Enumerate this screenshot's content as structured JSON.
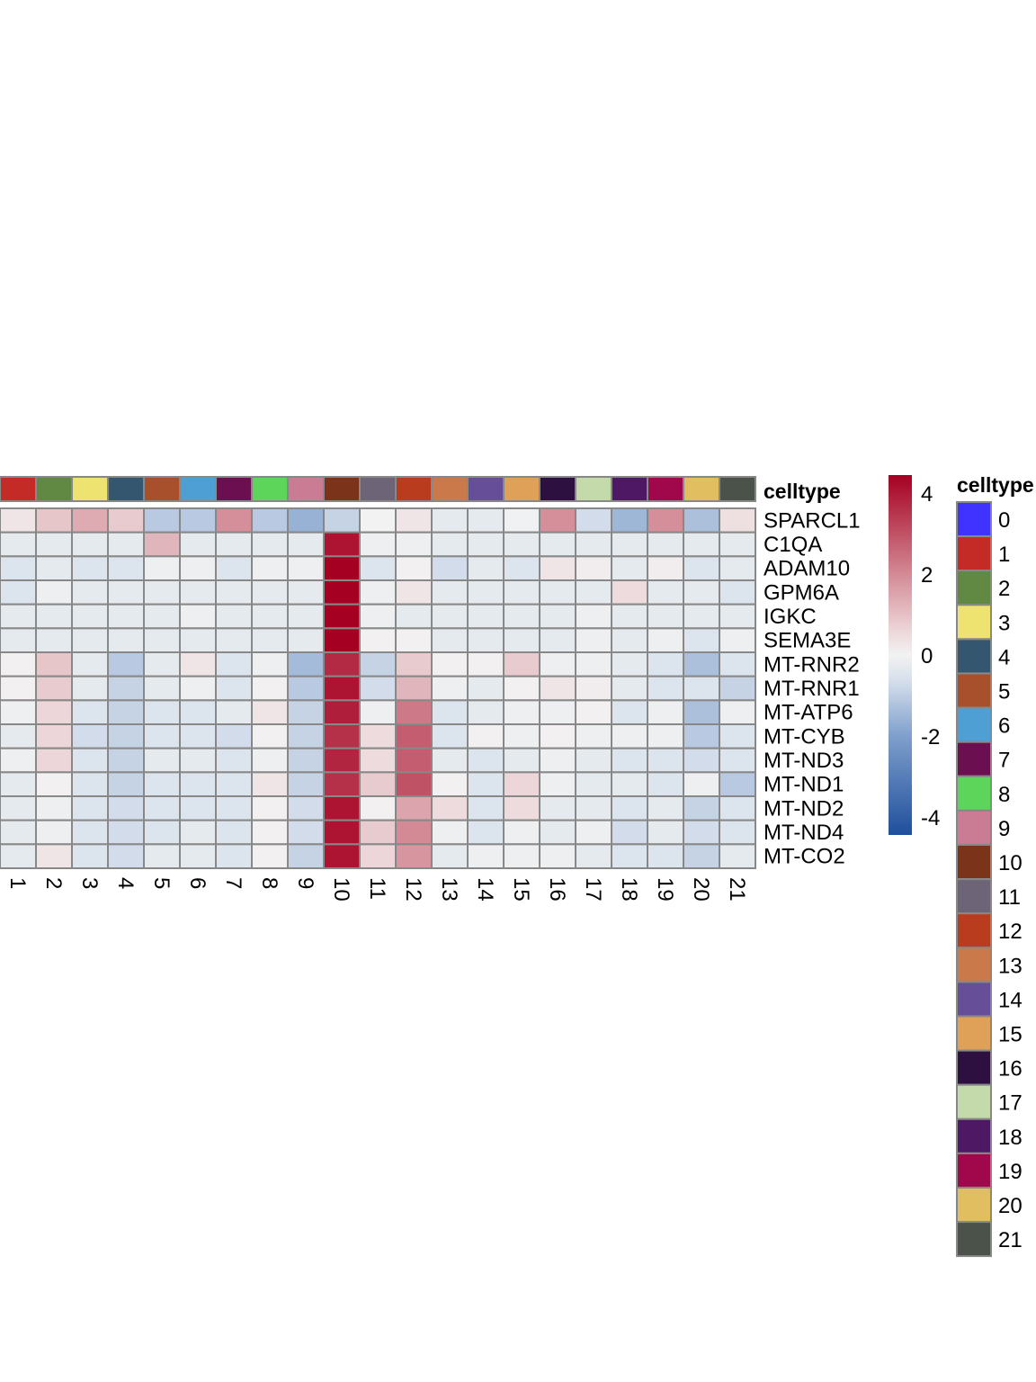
{
  "chart_data": {
    "type": "heatmap",
    "title": "",
    "annotation_label": "celltype",
    "columns": [
      "1",
      "2",
      "3",
      "4",
      "5",
      "6",
      "7",
      "8",
      "9",
      "10",
      "11",
      "12",
      "13",
      "14",
      "15",
      "16",
      "17",
      "18",
      "19",
      "20",
      "21"
    ],
    "rows": [
      "SPARCL1",
      "C1QA",
      "ADAM10",
      "GPM6A",
      "IGKC",
      "SEMA3E",
      "MT-RNR2",
      "MT-RNR1",
      "MT-ATP6",
      "MT-CYB",
      "MT-ND3",
      "MT-ND1",
      "MT-ND2",
      "MT-ND4",
      "MT-CO2"
    ],
    "values": [
      [
        0.3,
        0.9,
        1.4,
        0.8,
        -1.1,
        -1.1,
        1.9,
        -1.1,
        -1.6,
        -0.9,
        0,
        0.3,
        -0.3,
        -0.3,
        -0.05,
        1.9,
        -0.7,
        -1.5,
        1.9,
        -1.3,
        0.4
      ],
      [
        -0.3,
        -0.3,
        -0.3,
        -0.3,
        1.2,
        -0.3,
        -0.3,
        -0.3,
        -0.3,
        4.1,
        -0.1,
        -0.1,
        -0.3,
        -0.3,
        -0.3,
        -0.3,
        -0.3,
        -0.3,
        -0.3,
        -0.3,
        -0.3
      ],
      [
        -0.5,
        -0.3,
        -0.5,
        -0.5,
        -0.1,
        -0.1,
        -0.5,
        -0.1,
        -0.1,
        4.45,
        -0.5,
        0.05,
        -0.7,
        -0.3,
        -0.5,
        0.3,
        0.1,
        -0.3,
        0.1,
        -0.5,
        -0.3
      ],
      [
        -0.5,
        -0.1,
        -0.3,
        -0.3,
        -0.3,
        -0.3,
        -0.3,
        -0.3,
        -0.3,
        4.45,
        -0.1,
        0.3,
        -0.3,
        -0.3,
        -0.3,
        -0.3,
        -0.3,
        0.5,
        -0.3,
        -0.3,
        -0.5
      ],
      [
        -0.3,
        -0.3,
        -0.3,
        -0.3,
        -0.3,
        -0.1,
        -0.3,
        -0.3,
        -0.3,
        4.45,
        -0.1,
        -0.3,
        -0.3,
        -0.3,
        -0.3,
        -0.3,
        -0.1,
        -0.3,
        -0.3,
        -0.3,
        -0.3
      ],
      [
        -0.3,
        -0.3,
        -0.3,
        -0.3,
        -0.3,
        -0.3,
        -0.3,
        -0.3,
        -0.3,
        4.45,
        0.05,
        0.05,
        -0.3,
        -0.3,
        -0.3,
        -0.3,
        -0.1,
        -0.3,
        -0.1,
        -0.5,
        -0.1
      ],
      [
        0.05,
        0.9,
        -0.3,
        -1.1,
        -0.3,
        0.3,
        -0.5,
        -0.1,
        -1.4,
        3.7,
        -0.9,
        0.8,
        0.05,
        0.05,
        0.8,
        -0.1,
        -0.1,
        -0.3,
        -0.5,
        -1.3,
        -0.5
      ],
      [
        0.05,
        0.8,
        -0.3,
        -0.9,
        -0.3,
        -0.1,
        -0.5,
        0.05,
        -1.1,
        4.1,
        -0.7,
        1.2,
        -0.1,
        -0.3,
        0.05,
        0.3,
        0.1,
        -0.3,
        -0.5,
        -0.5,
        -0.9
      ],
      [
        -0.1,
        0.6,
        -0.5,
        -0.9,
        -0.5,
        -0.5,
        -0.3,
        0.3,
        -0.9,
        3.9,
        -0.1,
        2.3,
        -0.5,
        -0.3,
        -0.1,
        -0.1,
        0.05,
        -0.5,
        -0.1,
        -1.3,
        -0.1
      ],
      [
        -0.3,
        0.6,
        -0.7,
        -0.9,
        -0.5,
        -0.5,
        -0.7,
        0.05,
        -0.9,
        3.6,
        0.5,
        2.8,
        -0.5,
        0.05,
        -0.1,
        0.05,
        -0.1,
        -0.1,
        -0.1,
        -1.1,
        -0.5
      ],
      [
        -0.1,
        0.6,
        -0.5,
        -0.9,
        -0.3,
        -0.3,
        -0.5,
        -0.1,
        -0.9,
        3.8,
        0.5,
        2.8,
        -0.3,
        -0.5,
        -0.3,
        -0.1,
        -0.3,
        -0.5,
        -0.5,
        -0.7,
        -0.5
      ],
      [
        -0.3,
        0.05,
        -0.5,
        -0.9,
        -0.5,
        -0.5,
        -0.5,
        0.3,
        -0.9,
        3.6,
        0.8,
        3.0,
        0.05,
        -0.5,
        0.6,
        -0.1,
        -0.3,
        -0.3,
        -0.5,
        -0.1,
        -1.1
      ],
      [
        -0.3,
        -0.1,
        -0.5,
        -0.7,
        -0.5,
        -0.5,
        -0.5,
        0.05,
        -0.7,
        4.1,
        0.05,
        1.5,
        0.5,
        -0.5,
        0.5,
        -0.3,
        -0.3,
        -0.5,
        -0.3,
        -0.9,
        -0.5
      ],
      [
        -0.3,
        -0.1,
        -0.5,
        -0.7,
        -0.5,
        -0.3,
        -0.5,
        0.05,
        -0.7,
        4.1,
        0.8,
        2.0,
        -0.1,
        -0.5,
        -0.1,
        -0.3,
        -0.1,
        -0.7,
        -0.3,
        -0.7,
        -0.5
      ],
      [
        -0.3,
        0.3,
        -0.5,
        -0.7,
        -0.3,
        -0.3,
        -0.5,
        0.05,
        -0.9,
        4.1,
        0.6,
        1.8,
        -0.3,
        -0.1,
        -0.1,
        -0.1,
        -0.3,
        -0.5,
        -0.5,
        -0.9,
        -0.3
      ]
    ],
    "color_scale": {
      "range": [
        -4.45,
        4.45
      ],
      "ticks": [
        "4",
        "2",
        "0",
        "-2",
        "-4"
      ],
      "tick_values": [
        4,
        2,
        0,
        -2,
        -4
      ],
      "stops": [
        {
          "v": -4.45,
          "c": "#1f4f9c"
        },
        {
          "v": -2,
          "c": "#7f9fcc"
        },
        {
          "v": -0.6,
          "c": "#d8e1ec"
        },
        {
          "v": 0,
          "c": "#f2f2f2"
        },
        {
          "v": 0.6,
          "c": "#ecd6d9"
        },
        {
          "v": 2,
          "c": "#d38a95"
        },
        {
          "v": 4.45,
          "c": "#a50021"
        }
      ]
    },
    "legend": {
      "title": "celltype",
      "placement": "right",
      "items": [
        {
          "label": "0",
          "color": "#4032ff"
        },
        {
          "label": "1",
          "color": "#c42a26"
        },
        {
          "label": "2",
          "color": "#628944"
        },
        {
          "label": "3",
          "color": "#eee271"
        },
        {
          "label": "4",
          "color": "#35566f"
        },
        {
          "label": "5",
          "color": "#a84f2b"
        },
        {
          "label": "6",
          "color": "#4e9fd4"
        },
        {
          "label": "7",
          "color": "#6c0f51"
        },
        {
          "label": "8",
          "color": "#5dd55a"
        },
        {
          "label": "9",
          "color": "#c97c93"
        },
        {
          "label": "10",
          "color": "#7b3419"
        },
        {
          "label": "11",
          "color": "#6e6477"
        },
        {
          "label": "12",
          "color": "#ba3c1f"
        },
        {
          "label": "13",
          "color": "#ca7a4a"
        },
        {
          "label": "14",
          "color": "#664f98"
        },
        {
          "label": "15",
          "color": "#dfa158"
        },
        {
          "label": "16",
          "color": "#2d1040"
        },
        {
          "label": "17",
          "color": "#c4daab"
        },
        {
          "label": "18",
          "color": "#4f1865"
        },
        {
          "label": "19",
          "color": "#a0084b"
        },
        {
          "label": "20",
          "color": "#e1be5f"
        },
        {
          "label": "21",
          "color": "#4a5249"
        }
      ]
    }
  }
}
